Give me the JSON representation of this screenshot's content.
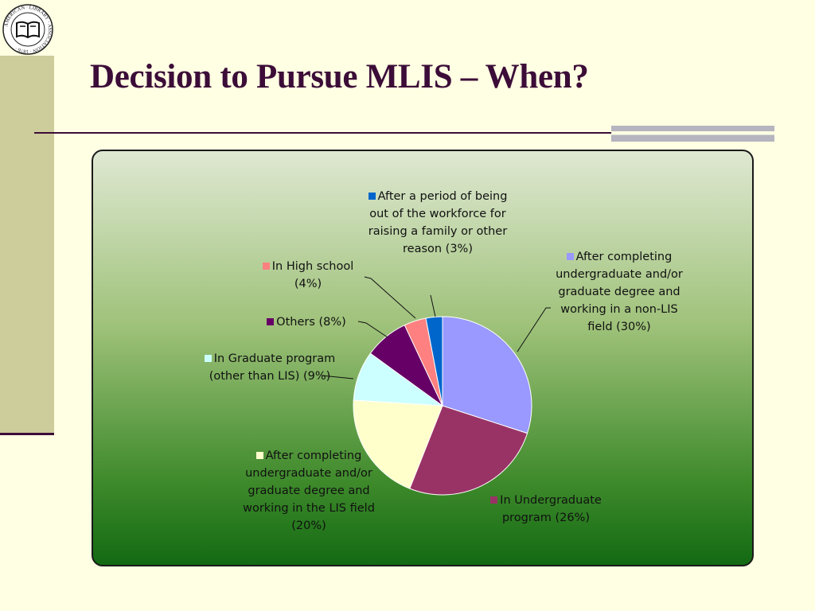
{
  "slide": {
    "title": "Decision to Pursue MLIS – When?",
    "logo_text": "AMERICAN LIBRARY ASSOCIATION 1876"
  },
  "colors": {
    "title": "#3c0d38",
    "side_panel": "#cdcc9b",
    "background": "#ffffe3"
  },
  "chart_data": {
    "type": "pie",
    "title": "",
    "series": [
      {
        "name": "",
        "slices": [
          {
            "label": "After completing undergraduate and/or graduate degree and working in a non-LIS field (30%)",
            "value": 30,
            "color": "#9999ff"
          },
          {
            "label": "In Undergraduate program (26%)",
            "value": 26,
            "color": "#993366"
          },
          {
            "label": "After completing undergraduate and/or graduate degree and working in the LIS field (20%)",
            "value": 20,
            "color": "#ffffcc"
          },
          {
            "label": "In Graduate program (other than LIS) (9%)",
            "value": 9,
            "color": "#ccffff"
          },
          {
            "label": "Others (8%)",
            "value": 8,
            "color": "#660066"
          },
          {
            "label": "In High school (4%)",
            "value": 4,
            "color": "#ff8080"
          },
          {
            "label": "After a period of being out of the workforce for raising a family or other reason (3%)",
            "value": 3,
            "color": "#0066cc"
          }
        ]
      }
    ],
    "start": "12 o'clock",
    "direction": "clockwise",
    "legend": "none (data labels with leader lines)"
  }
}
